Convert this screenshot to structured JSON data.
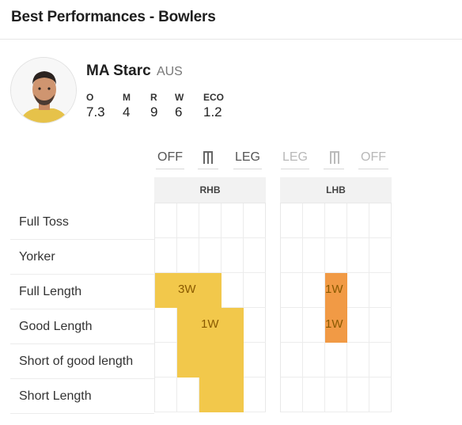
{
  "header": {
    "title": "Best Performances - Bowlers"
  },
  "player": {
    "name": "MA Starc",
    "country": "AUS",
    "stats": [
      {
        "label": "O",
        "value": "7.3"
      },
      {
        "label": "M",
        "value": "4"
      },
      {
        "label": "R",
        "value": "9"
      },
      {
        "label": "W",
        "value": "6"
      },
      {
        "label": "ECO",
        "value": "1.2"
      }
    ]
  },
  "pitch": {
    "rhb": {
      "label": "RHB",
      "off": "OFF",
      "leg": "LEG"
    },
    "lhb": {
      "label": "LHB",
      "off": "OFF",
      "leg": "LEG"
    },
    "rows": [
      "Full Toss",
      "Yorker",
      "Full Length",
      "Good Length",
      "Short of good length",
      "Short Length"
    ],
    "rhb_cells": [
      {
        "label": "3W"
      },
      {
        "label": "1W"
      }
    ],
    "lhb_cells": [
      {
        "label": "1W"
      },
      {
        "label": "1W"
      }
    ],
    "colors": {
      "yellow": "#f2c84b",
      "orange": "#f19a45"
    }
  }
}
